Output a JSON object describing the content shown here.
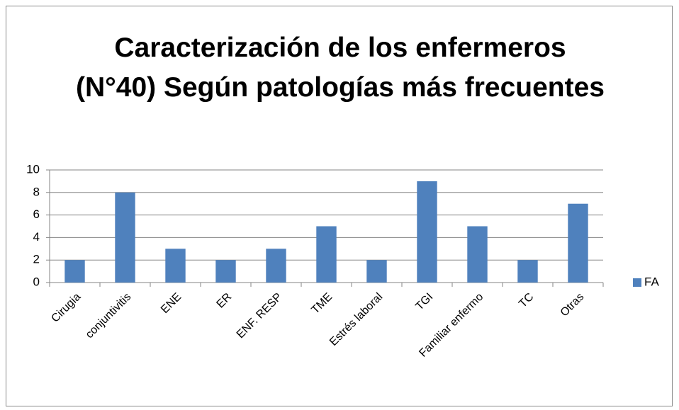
{
  "chart_data": {
    "type": "bar",
    "title": "Caracterización de los enfermeros (N°40) Según patologías más frecuentes",
    "categories": [
      "Cirugia",
      "conjuntivitis",
      "ENE",
      "ER",
      "ENF. RESP",
      "TME",
      "Estrés laboral",
      "TGI",
      "Familiar enfermo",
      "TC",
      "Otras"
    ],
    "series": [
      {
        "name": "FA",
        "color": "#4f81bd",
        "values": [
          2,
          8,
          3,
          2,
          3,
          5,
          2,
          9,
          5,
          2,
          7
        ]
      }
    ],
    "ylim": [
      0,
      10
    ],
    "yticks": [
      0,
      2,
      4,
      6,
      8,
      10
    ],
    "grid": true,
    "legend": "right"
  }
}
